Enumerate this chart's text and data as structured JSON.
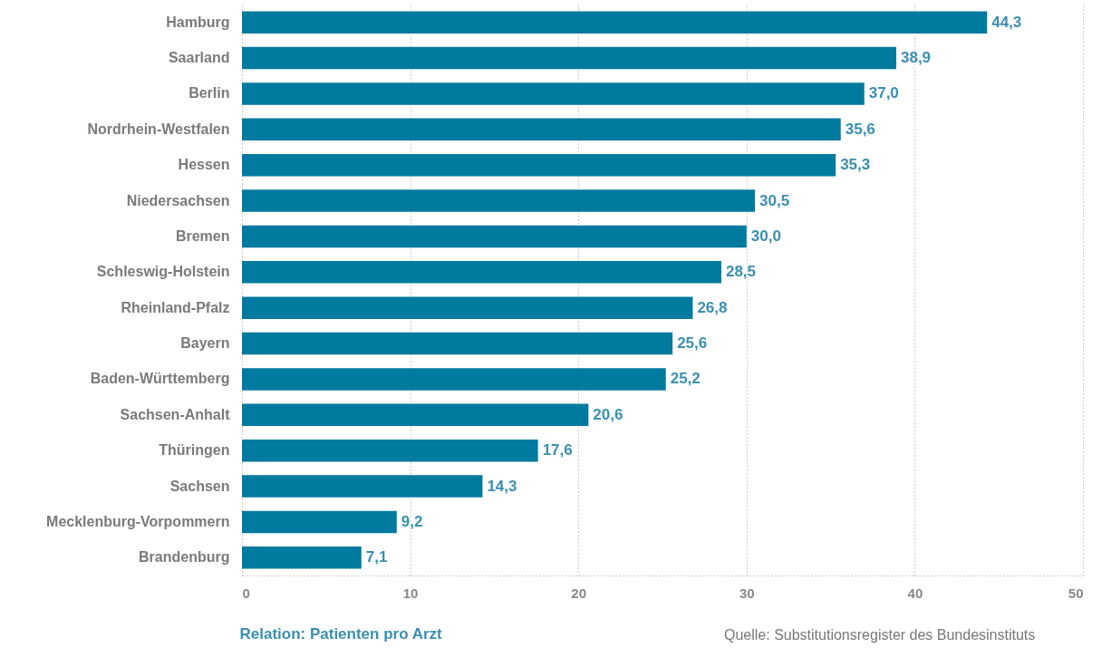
{
  "chart_data": {
    "type": "bar",
    "orientation": "horizontal",
    "xlabel": "Relation: Patienten pro Arzt",
    "categories": [
      "Hamburg",
      "Saarland",
      "Berlin",
      "Nordrhein-Westfalen",
      "Hessen",
      "Niedersachsen",
      "Bremen",
      "Schleswig-Holstein",
      "Rheinland-Pfalz",
      "Bayern",
      "Baden-Württemberg",
      "Sachsen-Anhalt",
      "Thüringen",
      "Sachsen",
      "Mecklenburg-Vorpommern",
      "Brandenburg"
    ],
    "values": [
      44.3,
      38.9,
      37.0,
      35.6,
      35.3,
      30.5,
      30.0,
      28.5,
      26.8,
      25.6,
      25.2,
      20.6,
      17.6,
      14.3,
      9.2,
      7.1
    ],
    "value_labels": [
      "44,3",
      "38,9",
      "37,0",
      "35,6",
      "35,3",
      "30,5",
      "30,0",
      "28,5",
      "26,8",
      "25,6",
      "25,2",
      "20,6",
      "17,6",
      "14,3",
      "9,2",
      "7,1"
    ],
    "color": "#007a9e",
    "xlim": [
      0,
      50
    ],
    "xticks": [
      0,
      10,
      20,
      30,
      40,
      50
    ],
    "grid": "x",
    "annotations": [
      "Quelle: Substitutionsregister des Bundesinstituts"
    ]
  }
}
